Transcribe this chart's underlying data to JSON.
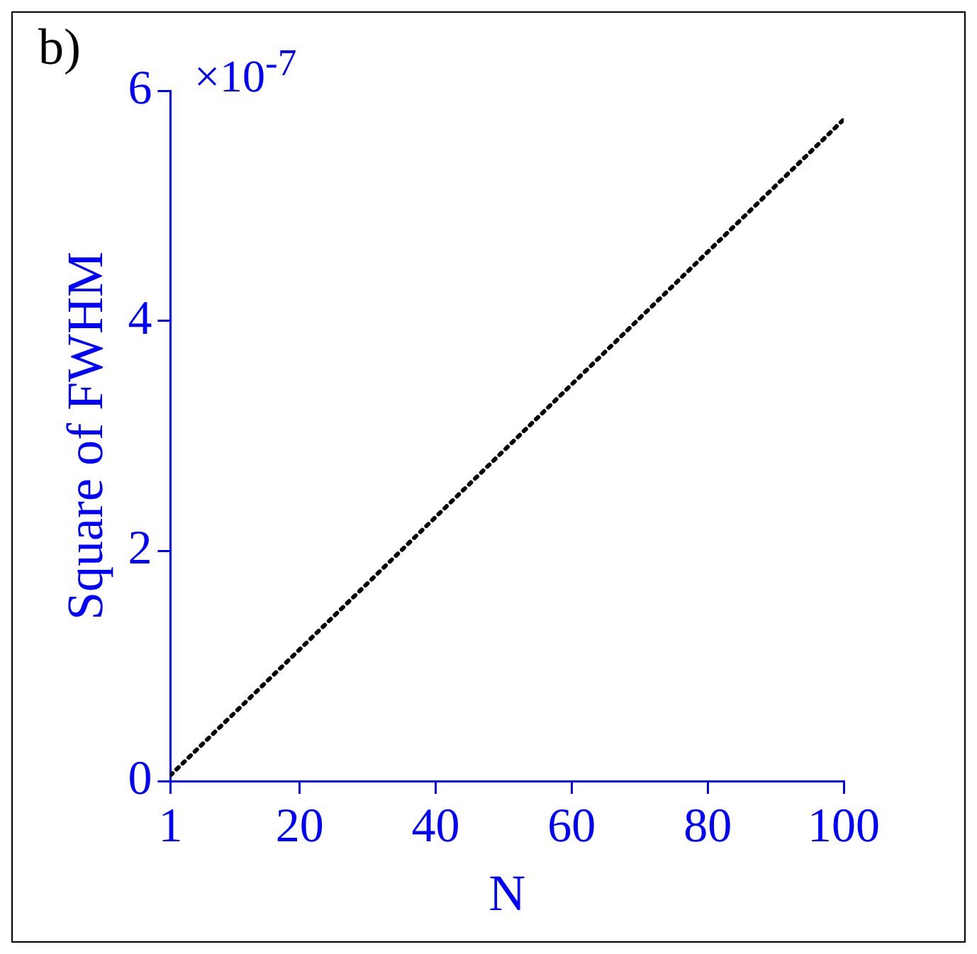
{
  "chart_data": {
    "type": "line",
    "xlabel": "N",
    "ylabel": "Square of FWHM",
    "annotations": [
      "b)",
      "×10$^{-7}$"
    ],
    "series": [
      {
        "color": "#000000",
        "x": [
          1,
          100
        ],
        "values": [
          0.05,
          5.75
        ]
      }
    ],
    "xlim": [
      1,
      100
    ],
    "xticks": [
      1,
      20,
      40,
      60,
      80,
      100
    ],
    "ylim": [
      0,
      6
    ],
    "yticks": [
      0,
      2,
      4,
      6
    ],
    "grid": false,
    "legend": false,
    "marker": "none",
    "line_style": "dotted"
  }
}
